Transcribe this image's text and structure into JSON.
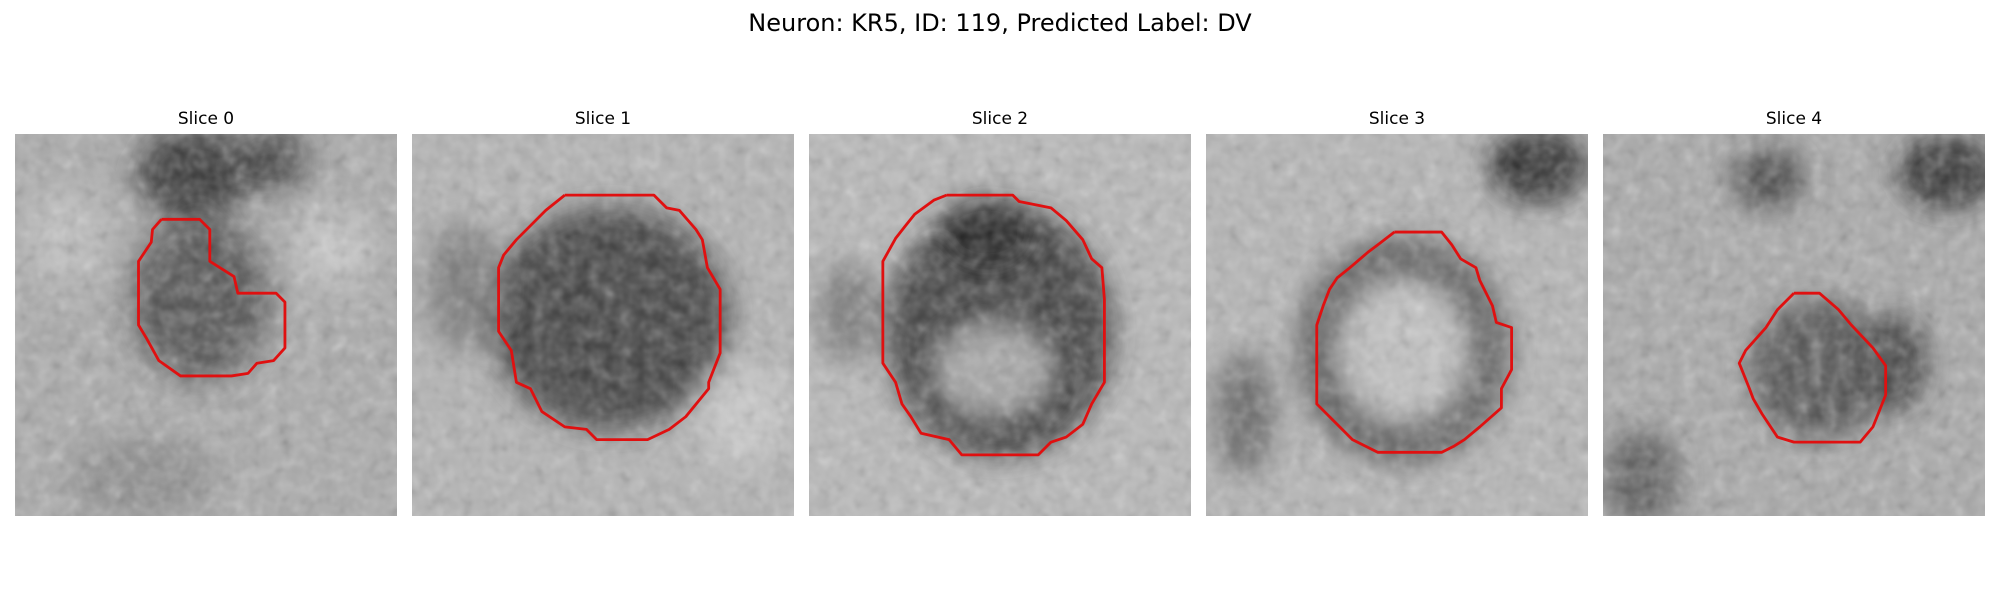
{
  "figure": {
    "title": "Neuron: KR5, ID: 119, Predicted Label: DV"
  },
  "colors": {
    "contour": "#e01010",
    "background": "#ffffff",
    "text": "#000000"
  },
  "panels": [
    {
      "label": "Slice 0"
    },
    {
      "label": "Slice 1"
    },
    {
      "label": "Slice 2"
    },
    {
      "label": "Slice 3"
    },
    {
      "label": "Slice 4"
    }
  ]
}
